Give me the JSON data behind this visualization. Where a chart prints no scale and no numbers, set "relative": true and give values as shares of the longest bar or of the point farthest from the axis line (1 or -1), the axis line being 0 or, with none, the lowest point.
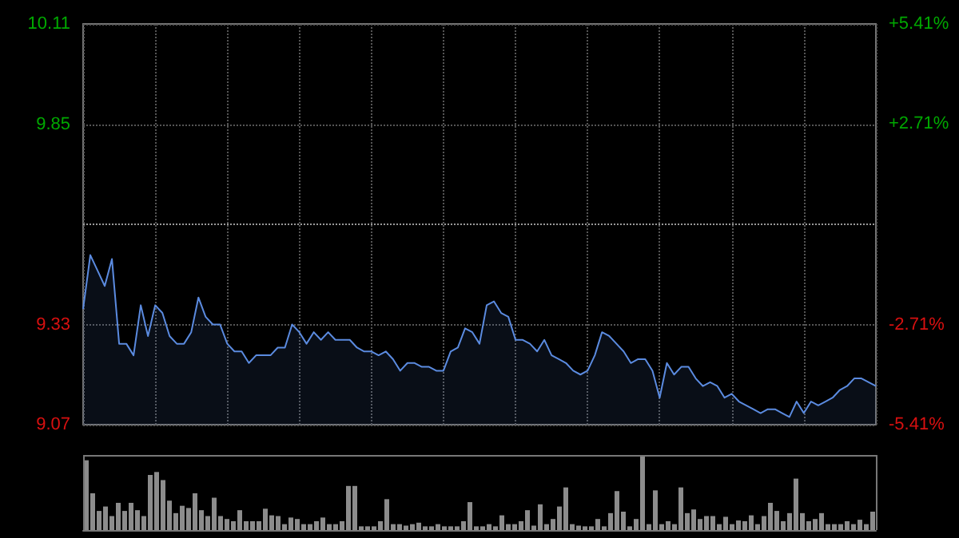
{
  "chart_data": [
    {
      "type": "area",
      "categories": [
        null,
        null,
        null,
        null,
        null,
        null,
        null,
        null,
        null,
        null,
        null,
        null,
        null,
        null,
        null,
        null,
        null,
        null,
        null,
        null,
        null,
        null,
        null,
        null,
        null,
        null,
        null,
        null,
        null,
        null,
        null,
        null,
        null,
        null,
        null,
        null,
        null,
        null,
        null,
        null,
        null,
        null,
        null,
        null,
        null,
        null,
        null,
        null,
        null,
        null,
        null,
        null,
        null,
        null,
        null,
        null,
        null,
        null,
        null,
        null,
        null,
        null,
        null,
        null,
        null,
        null,
        null,
        null,
        null,
        null,
        null,
        null,
        null,
        null,
        null,
        null,
        null,
        null,
        null,
        null,
        null,
        null,
        null,
        null,
        null,
        null,
        null,
        null,
        null,
        null,
        null,
        null,
        null,
        null,
        null,
        null,
        null,
        null,
        null,
        null,
        null,
        null,
        null,
        null,
        null,
        null,
        null,
        null,
        null,
        null,
        null
      ],
      "series": [
        {
          "color": "#5b8be0",
          "values": [
            9.37,
            9.51,
            9.47,
            9.43,
            9.5,
            9.28,
            9.28,
            9.25,
            9.38,
            9.3,
            9.38,
            9.36,
            9.3,
            9.28,
            9.28,
            9.31,
            9.4,
            9.35,
            9.33,
            9.33,
            9.28,
            9.26,
            9.26,
            9.23,
            9.25,
            9.25,
            9.25,
            9.27,
            9.27,
            9.33,
            9.31,
            9.28,
            9.31,
            9.29,
            9.31,
            9.29,
            9.29,
            9.29,
            9.27,
            9.26,
            9.26,
            9.25,
            9.26,
            9.24,
            9.21,
            9.23,
            9.23,
            9.22,
            9.22,
            9.21,
            9.21,
            9.26,
            9.27,
            9.32,
            9.31,
            9.28,
            9.38,
            9.39,
            9.36,
            9.35,
            9.29,
            9.29,
            9.28,
            9.26,
            9.29,
            9.25,
            9.24,
            9.23,
            9.21,
            9.2,
            9.21,
            9.25,
            9.31,
            9.3,
            9.28,
            9.26,
            9.23,
            9.24,
            9.24,
            9.21,
            9.14,
            9.23,
            9.2,
            9.22,
            9.22,
            9.19,
            9.17,
            9.18,
            9.17,
            9.14,
            9.15,
            9.13,
            9.12,
            9.11,
            9.1,
            9.11,
            9.11,
            9.1,
            9.09,
            9.13,
            9.1,
            9.13,
            9.12,
            9.13,
            9.14,
            9.16,
            9.17,
            9.19,
            9.19,
            9.18,
            9.17
          ]
        }
      ],
      "ylim": [
        9.07,
        10.11
      ],
      "yticks": [
        9.07,
        9.33,
        9.85,
        10.11
      ],
      "y2lim": [
        -5.41,
        5.41
      ],
      "y2ticks": [
        {
          "value": -5.41,
          "label": "-5.41%"
        },
        {
          "value": -2.71,
          "label": "-2.71%"
        },
        {
          "value": 2.71,
          "label": "+2.71%"
        },
        {
          "value": 5.41,
          "label": "+5.41%"
        }
      ],
      "ref_lines": [
        {
          "axis": "y",
          "value": 9.59,
          "color": "#999999",
          "line_style": "dotted"
        }
      ],
      "grid": true,
      "tick_labels": "y"
    },
    {
      "type": "bar",
      "relative": true,
      "tick_labels": false,
      "categories": [
        null,
        null,
        null,
        null,
        null,
        null,
        null,
        null,
        null,
        null,
        null,
        null,
        null,
        null,
        null,
        null,
        null,
        null,
        null,
        null,
        null,
        null,
        null,
        null,
        null,
        null,
        null,
        null,
        null,
        null,
        null,
        null,
        null,
        null,
        null,
        null,
        null,
        null,
        null,
        null,
        null,
        null,
        null,
        null,
        null,
        null,
        null,
        null,
        null,
        null,
        null,
        null,
        null,
        null,
        null,
        null,
        null,
        null,
        null,
        null,
        null,
        null,
        null,
        null,
        null,
        null,
        null,
        null,
        null,
        null,
        null,
        null,
        null,
        null,
        null,
        null,
        null,
        null,
        null,
        null,
        null,
        null,
        null,
        null,
        null,
        null,
        null,
        null,
        null,
        null,
        null,
        null,
        null,
        null,
        null,
        null,
        null,
        null,
        null,
        null,
        null,
        null,
        null,
        null,
        null,
        null,
        null,
        null,
        null,
        null,
        null,
        null,
        null,
        null,
        null,
        null,
        null,
        null,
        null,
        null,
        null,
        null,
        null,
        null
      ],
      "values": [
        0.95,
        0.5,
        0.26,
        0.32,
        0.19,
        0.37,
        0.26,
        0.37,
        0.27,
        0.19,
        0.75,
        0.79,
        0.68,
        0.4,
        0.23,
        0.33,
        0.3,
        0.5,
        0.27,
        0.19,
        0.44,
        0.19,
        0.15,
        0.12,
        0.27,
        0.12,
        0.12,
        0.12,
        0.29,
        0.2,
        0.19,
        0.08,
        0.17,
        0.15,
        0.08,
        0.08,
        0.12,
        0.17,
        0.08,
        0.08,
        0.12,
        0.6,
        0.6,
        0.05,
        0.05,
        0.05,
        0.12,
        0.42,
        0.08,
        0.08,
        0.06,
        0.08,
        0.1,
        0.05,
        0.05,
        0.08,
        0.05,
        0.05,
        0.05,
        0.12,
        0.38,
        0.05,
        0.05,
        0.08,
        0.05,
        0.2,
        0.08,
        0.08,
        0.12,
        0.27,
        0.06,
        0.35,
        0.08,
        0.15,
        0.32,
        0.58,
        0.08,
        0.06,
        0.05,
        0.05,
        0.15,
        0.05,
        0.23,
        0.53,
        0.25,
        0.05,
        0.15,
        1.0,
        0.08,
        0.54,
        0.08,
        0.12,
        0.08,
        0.58,
        0.23,
        0.28,
        0.15,
        0.19,
        0.19,
        0.08,
        0.18,
        0.08,
        0.13,
        0.12,
        0.2,
        0.08,
        0.19,
        0.37,
        0.26,
        0.12,
        0.23,
        0.7,
        0.23,
        0.12,
        0.15,
        0.23,
        0.08,
        0.08,
        0.08,
        0.12,
        0.08,
        0.14,
        0.08,
        0.25
      ],
      "color": "#8c8c8c"
    }
  ]
}
